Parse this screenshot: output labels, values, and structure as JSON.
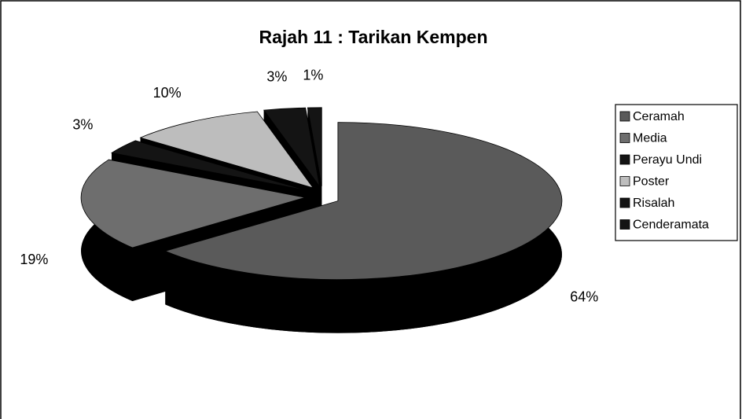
{
  "chart_data": {
    "type": "pie",
    "title": "Rajah 11 : Tarikan Kempen",
    "categories": [
      "Ceramah",
      "Media",
      "Perayu Undi",
      "Poster",
      "Risalah",
      "Cenderamata"
    ],
    "values": [
      64,
      19,
      3,
      10,
      3,
      1
    ],
    "value_labels": [
      "64%",
      "19%",
      "3%",
      "10%",
      "3%",
      "1%"
    ],
    "colors": [
      "#5a5a5a",
      "#6e6e6e",
      "#141414",
      "#bdbdbd",
      "#141414",
      "#141414"
    ],
    "legend": "right"
  }
}
